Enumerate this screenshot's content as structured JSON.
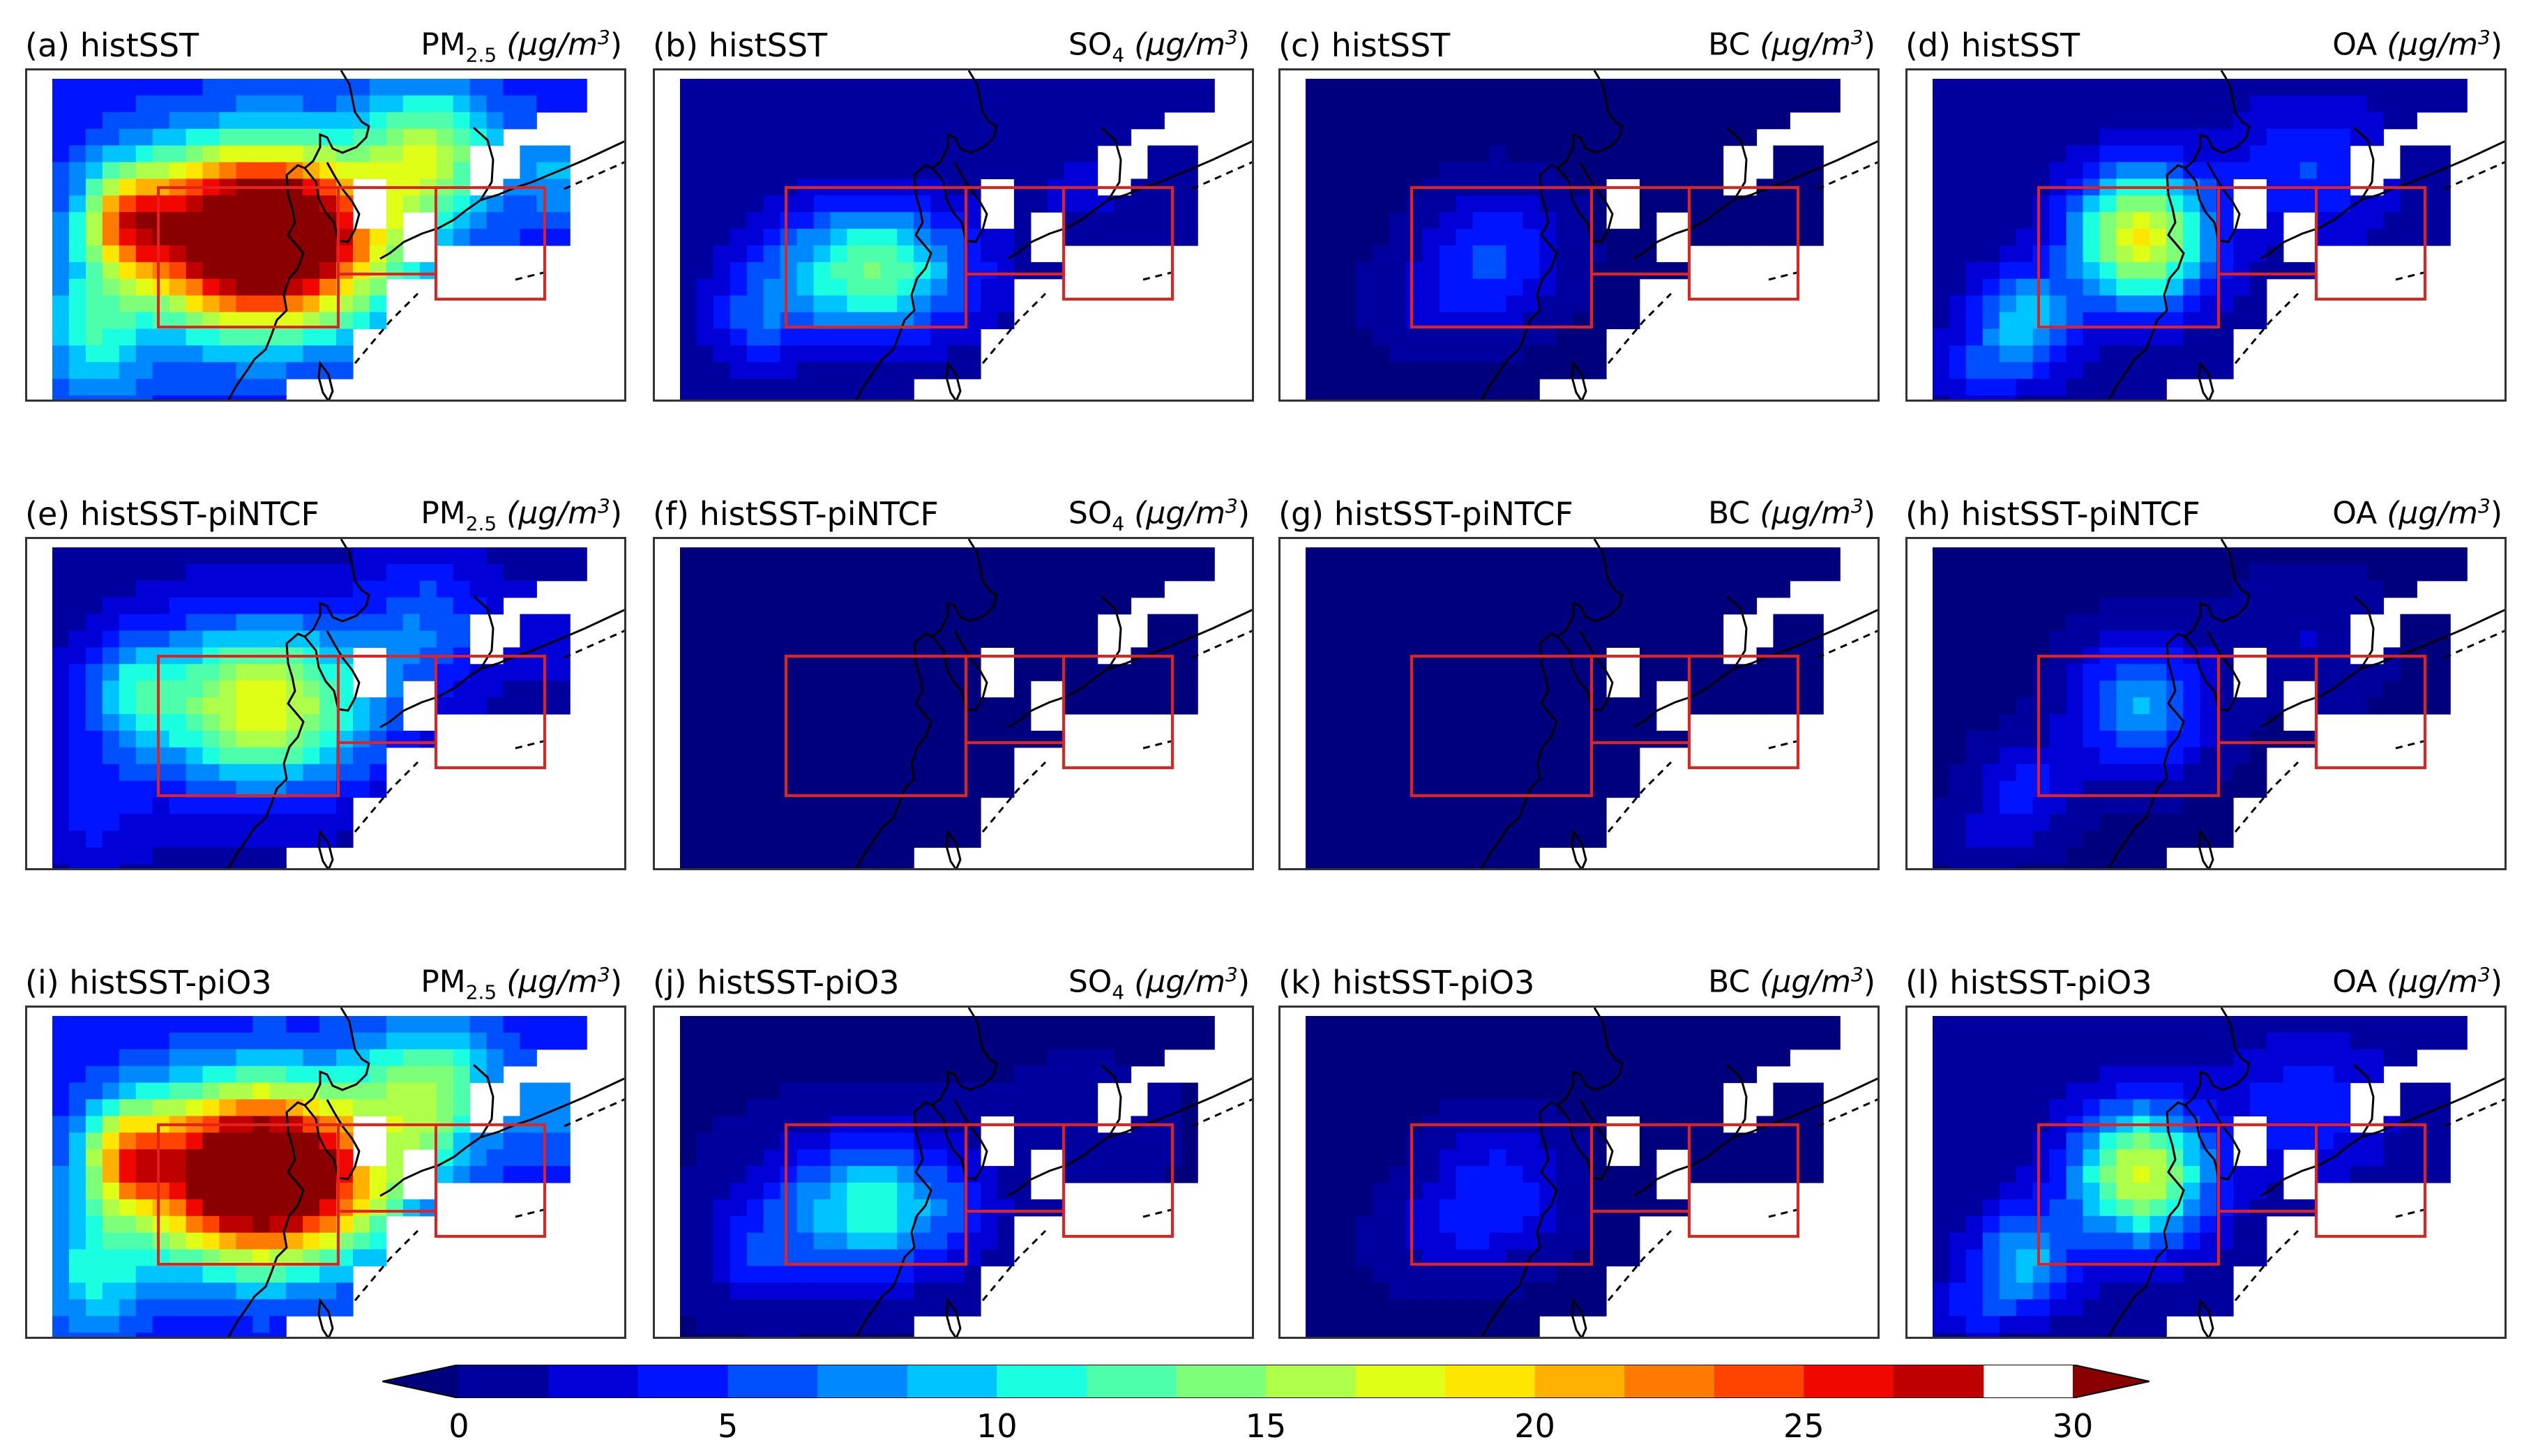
{
  "rows": [
    {
      "panels": [
        {
          "title": "(a) histSST",
          "var": "PM",
          "sub": "2.5",
          "unit": "(μg/m",
          "unit_exp": "3",
          "unit_close": ")",
          "field": "pm",
          "intensity": 1.0
        },
        {
          "title": "(b) histSST",
          "var": "SO",
          "sub": "4",
          "unit": "(μg/m",
          "unit_exp": "3",
          "unit_close": ")",
          "field": "so4",
          "intensity": 1.0
        },
        {
          "title": "(c) histSST",
          "var": "BC",
          "sub": "",
          "unit": "(μg/m",
          "unit_exp": "3",
          "unit_close": ")",
          "field": "bc",
          "intensity": 1.0
        },
        {
          "title": "(d) histSST",
          "var": "OA",
          "sub": "",
          "unit": "(μg/m",
          "unit_exp": "3",
          "unit_close": ")",
          "field": "oa",
          "intensity": 1.0
        }
      ]
    },
    {
      "panels": [
        {
          "title": "(e) histSST-piNTCF",
          "var": "PM",
          "sub": "2.5",
          "unit": "(μg/m",
          "unit_exp": "3",
          "unit_close": ")",
          "field": "pm",
          "intensity": 0.45
        },
        {
          "title": "(f) histSST-piNTCF",
          "var": "SO",
          "sub": "4",
          "unit": "(μg/m",
          "unit_exp": "3",
          "unit_close": ")",
          "field": "so4",
          "intensity": 0.1
        },
        {
          "title": "(g) histSST-piNTCF",
          "var": "BC",
          "sub": "",
          "unit": "(μg/m",
          "unit_exp": "3",
          "unit_close": ")",
          "field": "bc",
          "intensity": 0.15
        },
        {
          "title": "(h) histSST-piNTCF",
          "var": "OA",
          "sub": "",
          "unit": "(μg/m",
          "unit_exp": "3",
          "unit_close": ")",
          "field": "oa",
          "intensity": 0.5
        }
      ]
    },
    {
      "panels": [
        {
          "title": "(i) histSST-piO3",
          "var": "PM",
          "sub": "2.5",
          "unit": "(μg/m",
          "unit_exp": "3",
          "unit_close": ")",
          "field": "pm",
          "intensity": 0.95
        },
        {
          "title": "(j) histSST-piO3",
          "var": "SO",
          "sub": "4",
          "unit": "(μg/m",
          "unit_exp": "3",
          "unit_close": ")",
          "field": "so4",
          "intensity": 0.85
        },
        {
          "title": "(k) histSST-piO3",
          "var": "BC",
          "sub": "",
          "unit": "(μg/m",
          "unit_exp": "3",
          "unit_close": ")",
          "field": "bc",
          "intensity": 0.95
        },
        {
          "title": "(l) histSST-piO3",
          "var": "OA",
          "sub": "",
          "unit": "(μg/m",
          "unit_exp": "3",
          "unit_close": ")",
          "field": "oa",
          "intensity": 0.95
        }
      ]
    }
  ],
  "colorbar": {
    "min": 0,
    "max": 30,
    "step": 1.5,
    "ticks": [
      "0",
      "5",
      "10",
      "15",
      "20",
      "25",
      "30"
    ],
    "colors": [
      "#00007f",
      "#00009f",
      "#0000d7",
      "#0014ff",
      "#0050ff",
      "#0088ff",
      "#00c4ff",
      "#1affe0",
      "#4dffaa",
      "#7dff7a",
      "#adff4a",
      "#e0ff16",
      "#ffe600",
      "#ffb000",
      "#ff7a00",
      "#ff4400",
      "#f00800",
      "#bf0000",
      "#8a0000"
    ]
  },
  "region_box_color": "#e8201c"
}
